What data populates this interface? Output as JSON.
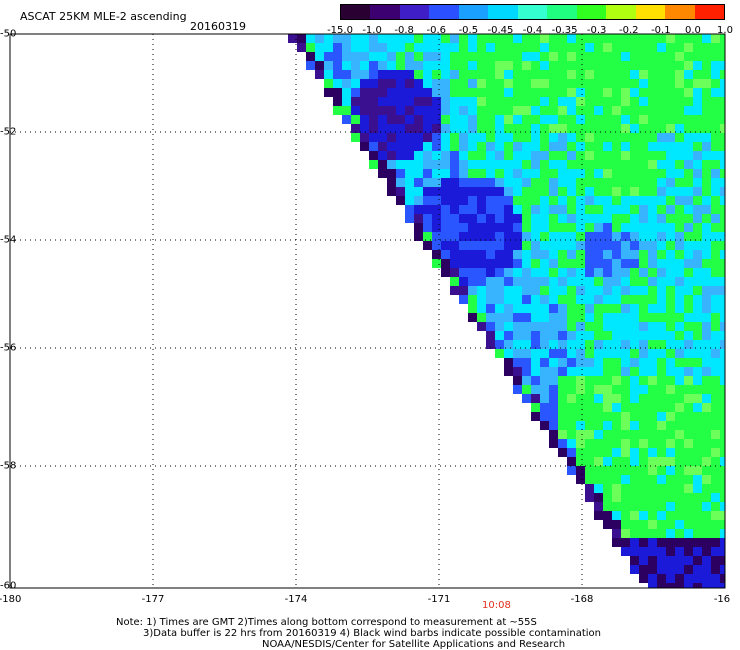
{
  "header": {
    "title": "ASCAT 25KM MLE-2 ascending",
    "date": "20160319"
  },
  "colorbar": {
    "labels": [
      "-15.0",
      "-1.0",
      "-0.8",
      "-0.6",
      "-0.5",
      "-0.45",
      "-0.4",
      "-0.35",
      "-0.3",
      "-0.2",
      "-0.1",
      "0.0",
      "1.0"
    ],
    "colors": [
      "#2a0033",
      "#3c0070",
      "#3f1ec8",
      "#2a50ff",
      "#1aa0ff",
      "#00d8ff",
      "#33ffd0",
      "#20ff80",
      "#30ff20",
      "#b0ff10",
      "#ffe000",
      "#ff8800",
      "#ff2000"
    ]
  },
  "axes": {
    "x_ticks": [
      "-180",
      "-177",
      "-174",
      "-171",
      "-168",
      "-16"
    ],
    "y_ticks": [
      "-50",
      "-52",
      "-54",
      "-56",
      "-58",
      "-60"
    ]
  },
  "timestamp": "10:08",
  "notes": [
    "Note: 1) Times are GMT 2)Times along bottom correspond to measurement at ~55S",
    "3)Data buffer is 22 hrs from 20160319 4) Black wind barbs indicate possible contamination",
    "NOAA/NESDIS/Center for Satellite Applications and Research"
  ],
  "field_colors": {
    "cyan": "#00e8ff",
    "green": "#22ff44",
    "light_green": "#6cff5a",
    "blue": "#2a56ff",
    "dark_blue": "#1a1ad8",
    "purple": "#3a1090",
    "dark_purple": "#2b0060",
    "sky": "#38b4ff"
  }
}
